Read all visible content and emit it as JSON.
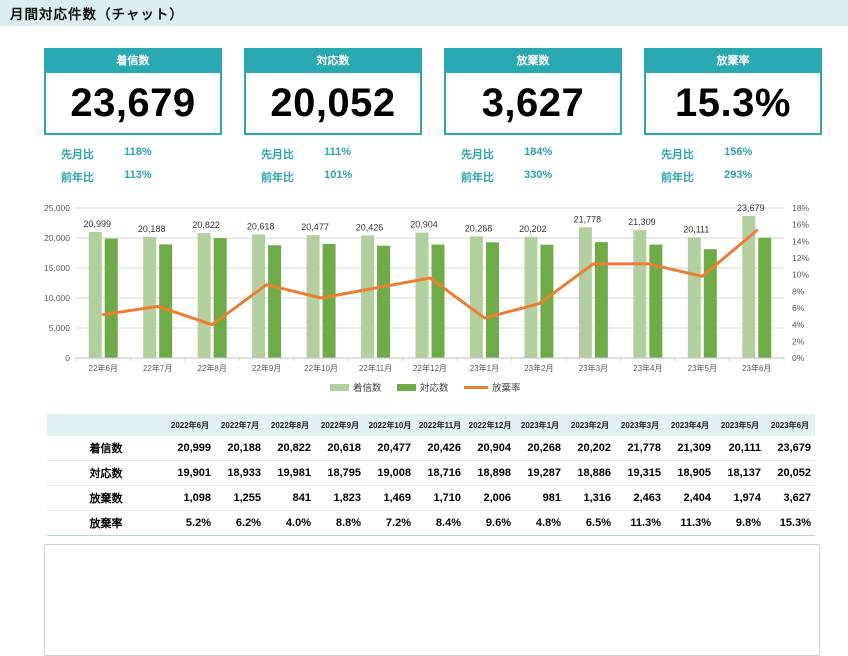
{
  "header": {
    "title": "月間対応件数（チャット）"
  },
  "comparison_labels": {
    "mom": "先月比",
    "yoy": "前年比"
  },
  "kpis": [
    {
      "label": "着信数",
      "value": "23,679",
      "mom": "118%",
      "yoy": "113%"
    },
    {
      "label": "対応数",
      "value": "20,052",
      "mom": "111%",
      "yoy": "101%"
    },
    {
      "label": "放棄数",
      "value": "3,627",
      "mom": "184%",
      "yoy": "330%"
    },
    {
      "label": "放棄率",
      "value": "15.3%",
      "mom": "156%",
      "yoy": "293%"
    }
  ],
  "chart_data": {
    "type": "combo",
    "categories": [
      "22年6月",
      "22年7月",
      "22年8月",
      "22年9月",
      "22年10月",
      "22年11月",
      "22年12月",
      "23年1月",
      "23年2月",
      "23年3月",
      "23年4月",
      "23年5月",
      "23年6月"
    ],
    "series": [
      {
        "name": "着信数",
        "type": "bar",
        "color": "#B3CFA0",
        "values": [
          20999,
          20188,
          20822,
          20618,
          20477,
          20426,
          20904,
          20268,
          20202,
          21778,
          21309,
          20111,
          23679
        ]
      },
      {
        "name": "対応数",
        "type": "bar",
        "color": "#6FAC47",
        "values": [
          19901,
          18933,
          19981,
          18795,
          19008,
          18716,
          18898,
          19287,
          18886,
          19315,
          18905,
          18137,
          20052
        ]
      },
      {
        "name": "放棄率",
        "type": "line",
        "color": "#ED7D31",
        "values": [
          5.2,
          6.2,
          4.0,
          8.8,
          7.2,
          8.4,
          9.6,
          4.8,
          6.5,
          11.3,
          11.3,
          9.8,
          15.3
        ]
      }
    ],
    "left_axis": {
      "min": 0,
      "max": 25000,
      "step": 5000
    },
    "right_axis": {
      "min": 0,
      "max": 18,
      "step": 2,
      "suffix": "%"
    },
    "grid": true,
    "legend_position": "bottom",
    "data_labels_series": "着信数"
  },
  "table": {
    "columns": [
      "2022年6月",
      "2022年7月",
      "2022年8月",
      "2022年9月",
      "2022年10月",
      "2022年11月",
      "2022年12月",
      "2023年1月",
      "2023年2月",
      "2023年3月",
      "2023年4月",
      "2023年5月",
      "2023年6月"
    ],
    "rows": [
      {
        "label": "着信数",
        "values": [
          "20,999",
          "20,188",
          "20,822",
          "20,618",
          "20,477",
          "20,426",
          "20,904",
          "20,268",
          "20,202",
          "21,778",
          "21,309",
          "20,111",
          "23,679"
        ]
      },
      {
        "label": "対応数",
        "values": [
          "19,901",
          "18,933",
          "19,981",
          "18,795",
          "19,008",
          "18,716",
          "18,898",
          "19,287",
          "18,886",
          "19,315",
          "18,905",
          "18,137",
          "20,052"
        ]
      },
      {
        "label": "放棄数",
        "values": [
          "1,098",
          "1,255",
          "841",
          "1,823",
          "1,469",
          "1,710",
          "2,006",
          "981",
          "1,316",
          "2,463",
          "2,404",
          "1,974",
          "3,627"
        ]
      },
      {
        "label": "放棄率",
        "values": [
          "5.2%",
          "6.2%",
          "4.0%",
          "8.8%",
          "7.2%",
          "8.4%",
          "9.6%",
          "4.8%",
          "6.5%",
          "11.3%",
          "11.3%",
          "9.8%",
          "15.3%"
        ]
      }
    ]
  },
  "colors": {
    "accent_teal": "#29A9B2",
    "titlebar_bg": "#DCEDEF",
    "table_header_bg": "#E2F1F3",
    "bar_light_green": "#B3CFA0",
    "bar_dark_green": "#6FAC47",
    "line_orange": "#ED7D31",
    "gridline": "#D9D9D9",
    "axis_text": "#595959",
    "comparison_text": "#2AA4AF"
  }
}
